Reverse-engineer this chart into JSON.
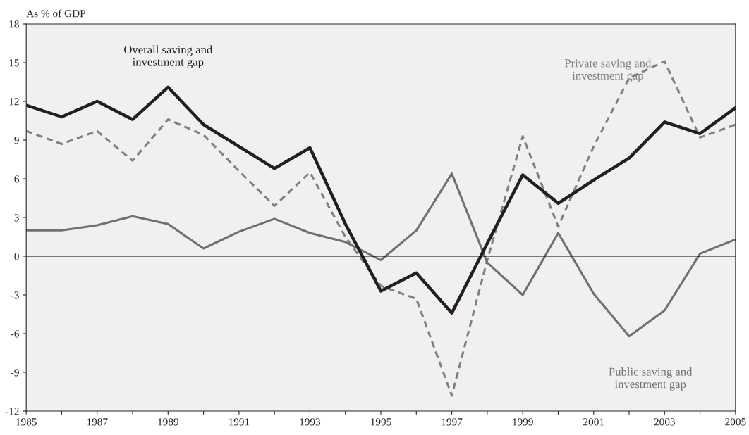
{
  "chart_data": {
    "type": "line",
    "ylabel": "As % of GDP",
    "x": [
      1985,
      1986,
      1987,
      1988,
      1989,
      1990,
      1991,
      1992,
      1993,
      1994,
      1995,
      1996,
      1997,
      1998,
      1999,
      2000,
      2001,
      2002,
      2003,
      2004,
      2005
    ],
    "xlim": [
      1985,
      2005
    ],
    "xticks": [
      1985,
      {
        "value": 1986,
        "label": null
      },
      1987,
      {
        "value": 1988,
        "label": null
      },
      1989,
      {
        "value": 1990,
        "label": null
      },
      1991,
      {
        "value": 1992,
        "label": null
      },
      1993,
      {
        "value": 1994,
        "label": null
      },
      1995,
      {
        "value": 1996,
        "label": null
      },
      1997,
      {
        "value": 1998,
        "label": null
      },
      1999,
      {
        "value": 2000,
        "label": null
      },
      2001,
      {
        "value": 2002,
        "label": null
      },
      2003,
      {
        "value": 2004,
        "label": null
      },
      2005
    ],
    "ylim": [
      -12,
      18
    ],
    "yticks": [
      -12,
      -9,
      -6,
      -3,
      0,
      3,
      6,
      9,
      12,
      15,
      18
    ],
    "grid": false,
    "legend": false,
    "marker": "none",
    "series": [
      {
        "name": "Private saving and\ninvestment gap",
        "color": "#808080",
        "line_style": "dashed",
        "values": [
          9.7,
          8.7,
          9.7,
          7.4,
          10.6,
          9.4,
          6.6,
          3.9,
          6.5,
          1.5,
          -2.3,
          -3.3,
          -10.8,
          -0.3,
          9.3,
          2.3,
          8.5,
          13.8,
          15.1,
          9.2,
          10.2
        ]
      },
      {
        "name": "Public saving and\ninvestment gap",
        "color": "#707070",
        "line_style": "solid",
        "values": [
          2.0,
          2.0,
          2.4,
          3.1,
          2.5,
          0.6,
          1.9,
          2.9,
          1.8,
          1.1,
          -0.3,
          2.0,
          6.4,
          -0.5,
          -3.0,
          1.8,
          -2.9,
          -6.2,
          -4.2,
          0.2,
          1.3
        ]
      },
      {
        "name": "Overall saving and\ninvestment gap",
        "color": "#231f20",
        "line_style": "solid",
        "values": [
          11.7,
          10.8,
          12.0,
          10.6,
          13.1,
          10.2,
          8.5,
          6.8,
          8.4,
          2.5,
          -2.7,
          -1.3,
          -4.4,
          1.0,
          6.3,
          4.1,
          5.9,
          7.6,
          10.4,
          9.5,
          11.5
        ]
      }
    ],
    "ref_lines": [
      {
        "axis": "y",
        "value": 0,
        "color": "#000000"
      }
    ]
  }
}
